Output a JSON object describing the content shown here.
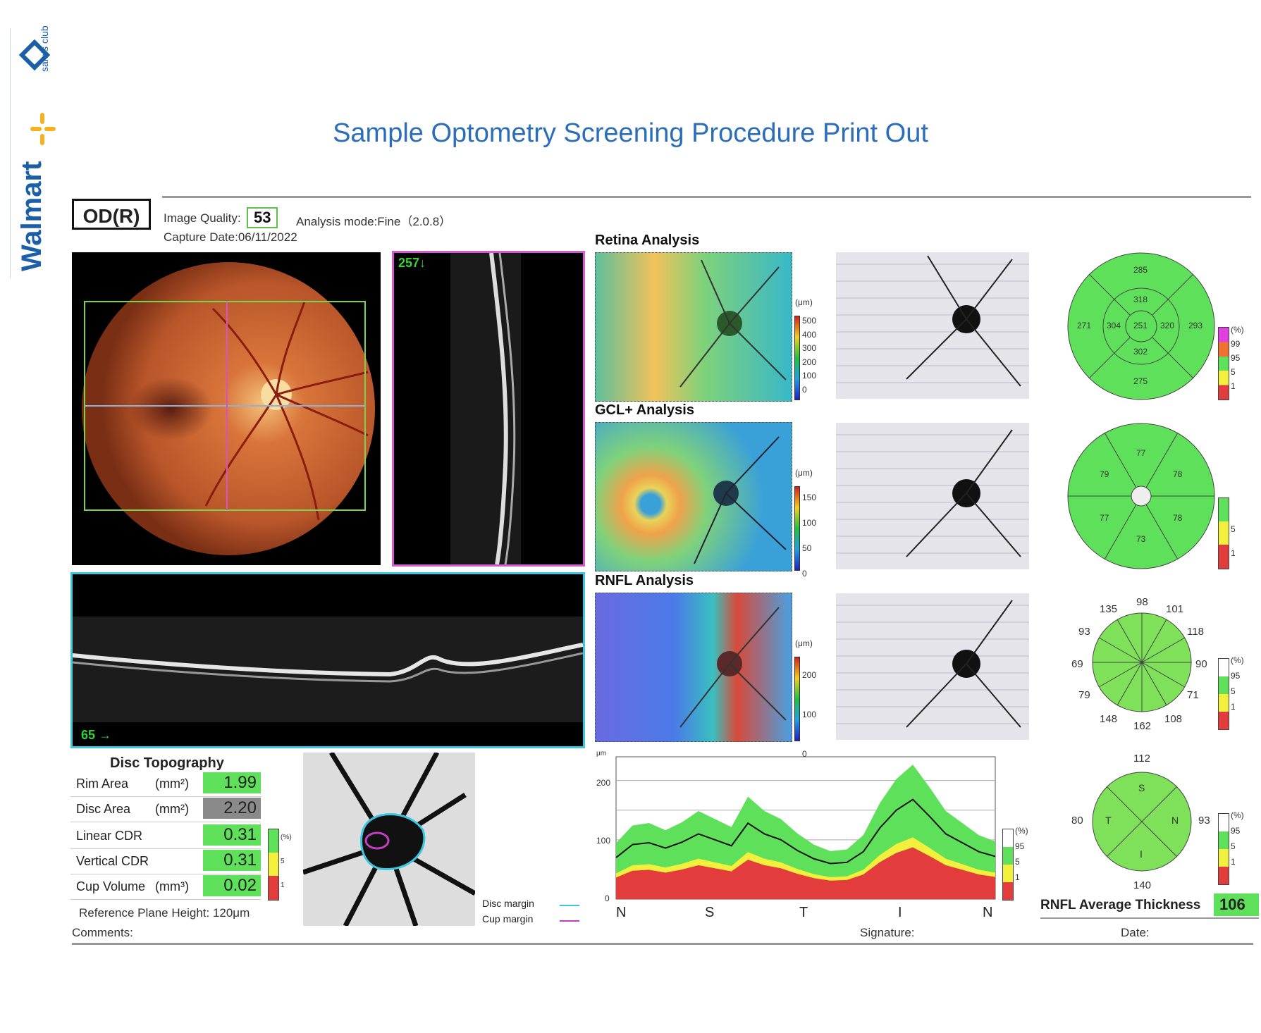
{
  "branding": {
    "sams": "sam's club",
    "walmart": "Walmart"
  },
  "header": {
    "title": "Sample Optometry Screening Procedure Print Out",
    "eye": "OD(R)",
    "image_quality_label": "Image Quality:",
    "image_quality_value": "53",
    "analysis_mode": "Analysis mode:Fine（2.0.8）",
    "capture_date": "Capture Date:06/11/2022"
  },
  "scans": {
    "vertical_marker": "257↓",
    "horizontal_marker": "65 →"
  },
  "analysis": {
    "retina": {
      "label": "Retina Analysis",
      "unit": "(μm)",
      "scale": [
        "500",
        "400",
        "300",
        "200",
        "100",
        "0"
      ],
      "values": {
        "outer_top": "285",
        "inner_top": "318",
        "outer_left": "271",
        "inner_left": "304",
        "center": "251",
        "inner_right": "320",
        "outer_right": "293",
        "inner_bottom": "302",
        "outer_bottom": "275"
      },
      "legend": [
        "(%)",
        "99",
        "95",
        "5",
        "1"
      ]
    },
    "gcl": {
      "label": "GCL+ Analysis",
      "unit": "(μm)",
      "scale": [
        "150",
        "100",
        "50",
        "0"
      ],
      "values": {
        "top": "77",
        "upper_left": "79",
        "upper_right": "78",
        "lower_left": "77",
        "lower_right": "78",
        "bottom": "73"
      },
      "legend": [
        "5",
        "1"
      ]
    },
    "rnfl": {
      "label": "RNFL Analysis",
      "unit": "(μm)",
      "scale": [
        "200",
        "100",
        "0"
      ],
      "clock": [
        "98",
        "101",
        "118",
        "90",
        "71",
        "108",
        "162",
        "148",
        "79",
        "69",
        "93",
        "135"
      ],
      "legend": [
        "(%)",
        "95",
        "5",
        "1"
      ],
      "quadrants": {
        "top": "112",
        "left": "80",
        "right": "93",
        "bottom": "140",
        "S": "S",
        "T": "T",
        "N": "N",
        "I": "I"
      },
      "legend2": [
        "(%)",
        "95",
        "5",
        "1"
      ]
    }
  },
  "disc_topography": {
    "title": "Disc Topography",
    "rows": [
      {
        "label": "Rim Area",
        "unit": "(mm²)",
        "value": "1.99"
      },
      {
        "label": "Disc Area",
        "unit": "(mm²)",
        "value": "2.20"
      },
      {
        "label": "Linear CDR",
        "unit": "",
        "value": "0.31"
      },
      {
        "label": "Vertical CDR",
        "unit": "",
        "value": "0.31"
      },
      {
        "label": "Cup Volume",
        "unit": "(mm³)",
        "value": "0.02"
      }
    ],
    "reference": "Reference Plane Height: 120μm",
    "legend_ticks": [
      "(%)",
      "5",
      "1"
    ],
    "disc_margin": "Disc margin",
    "cup_margin": "Cup margin"
  },
  "chart_data": {
    "type": "line",
    "ylabel": "μm",
    "ylim": [
      0,
      240
    ],
    "yticks": [
      "200",
      "100",
      "0"
    ],
    "xlabels": [
      "N",
      "S",
      "T",
      "I",
      "N"
    ],
    "series": [
      {
        "values": [
          70,
          92,
          95,
          86,
          96,
          110,
          100,
          90,
          128,
          110,
          100,
          82,
          68,
          60,
          62,
          80,
          120,
          150,
          168,
          140,
          110,
          95,
          80,
          72
        ]
      }
    ],
    "legend": [
      "(%)",
      "95",
      "5",
      "1"
    ]
  },
  "footer": {
    "comments": "Comments:",
    "signature": "Signature:",
    "date": "Date:",
    "rnfl_avg_label": "RNFL Average Thickness",
    "rnfl_avg_value": "106 μ"
  },
  "colors": {
    "green": "#5fe05a",
    "yellow": "#f2f03c",
    "red": "#e23c3c",
    "title": "#2a6ebb"
  }
}
